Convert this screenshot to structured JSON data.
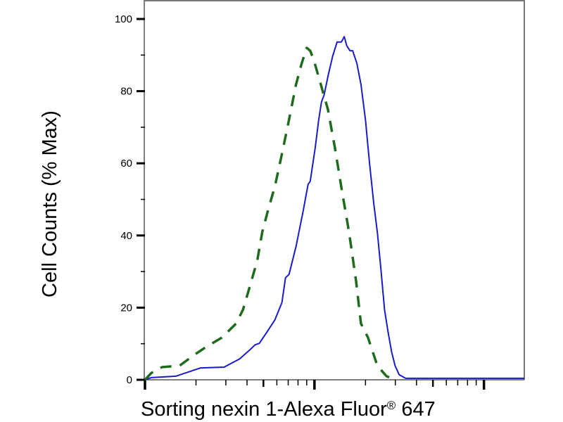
{
  "chart_data": {
    "type": "line",
    "title": "",
    "xlabel": "Sorting nexin 1-Alexa Fluor",
    "xlabel_mark": "®",
    "xlabel_suffix": " 647",
    "ylabel": "Cell Counts (% Max)",
    "x_scale": "log",
    "xlim": [
      1,
      173
    ],
    "ylim": [
      0,
      100
    ],
    "yticks": [
      0,
      20,
      40,
      60,
      80,
      100
    ],
    "ytick_labels": [
      "0",
      "20",
      "40",
      "60",
      "80",
      "100"
    ],
    "x_major_ticks": [
      1,
      10,
      100
    ],
    "grid": false,
    "legend": "none",
    "series": [
      {
        "style": "solid",
        "color": "#1a1acc",
        "x": [
          1,
          1.09,
          1.52,
          2.13,
          2.93,
          3.62,
          4.18,
          4.47,
          4.73,
          5.31,
          5.84,
          6.43,
          6.75,
          7.08,
          7.79,
          8.58,
          9.17,
          9.44,
          10.1,
          10.6,
          11.0,
          11.4,
          12.1,
          12.8,
          13.6,
          14.4,
          15.0,
          15.5,
          16.2,
          16.8,
          17.8,
          18.8,
          20.0,
          21.1,
          22.4,
          23.5,
          24.6,
          25.9,
          27.1,
          28.5,
          29.9,
          31.6,
          34.5,
          173
        ],
        "y": [
          0,
          0.6,
          1,
          3.3,
          3.5,
          5.8,
          8.4,
          9.7,
          10.1,
          13.6,
          16.6,
          21.4,
          28.3,
          29.2,
          37,
          46.8,
          54.2,
          55,
          64.3,
          72.1,
          77,
          78.9,
          84.8,
          89.7,
          93.6,
          93.6,
          95.1,
          92.6,
          91.2,
          91.2,
          87.7,
          81.9,
          72.1,
          60.4,
          48.7,
          40.9,
          31.2,
          19.5,
          13.6,
          7.8,
          3.9,
          1.4,
          0.4,
          0.4
        ]
      },
      {
        "style": "dashed",
        "color": "#1e6b1e",
        "x": [
          1,
          1.09,
          1.26,
          1.6,
          1.94,
          2.24,
          2.84,
          3.45,
          3.79,
          4.18,
          4.6,
          4.92,
          5.31,
          5.84,
          6.43,
          7.08,
          7.79,
          8.41,
          9.0,
          9.44,
          9.9,
          10.9,
          12.0,
          13.2,
          14.5,
          16.0,
          17.6,
          18.8,
          20.7,
          23.5,
          26.6,
          29.9
        ],
        "y": [
          0,
          1.9,
          3.5,
          3.9,
          6.8,
          8.8,
          11.7,
          15.6,
          19.5,
          26.3,
          33.1,
          40.9,
          46.8,
          53.6,
          62.6,
          72.1,
          81.9,
          87.7,
          92,
          91.2,
          88.7,
          81.9,
          75,
          64.3,
          52.6,
          40.9,
          27.3,
          15.6,
          11.7,
          3.9,
          1,
          0
        ]
      }
    ]
  }
}
